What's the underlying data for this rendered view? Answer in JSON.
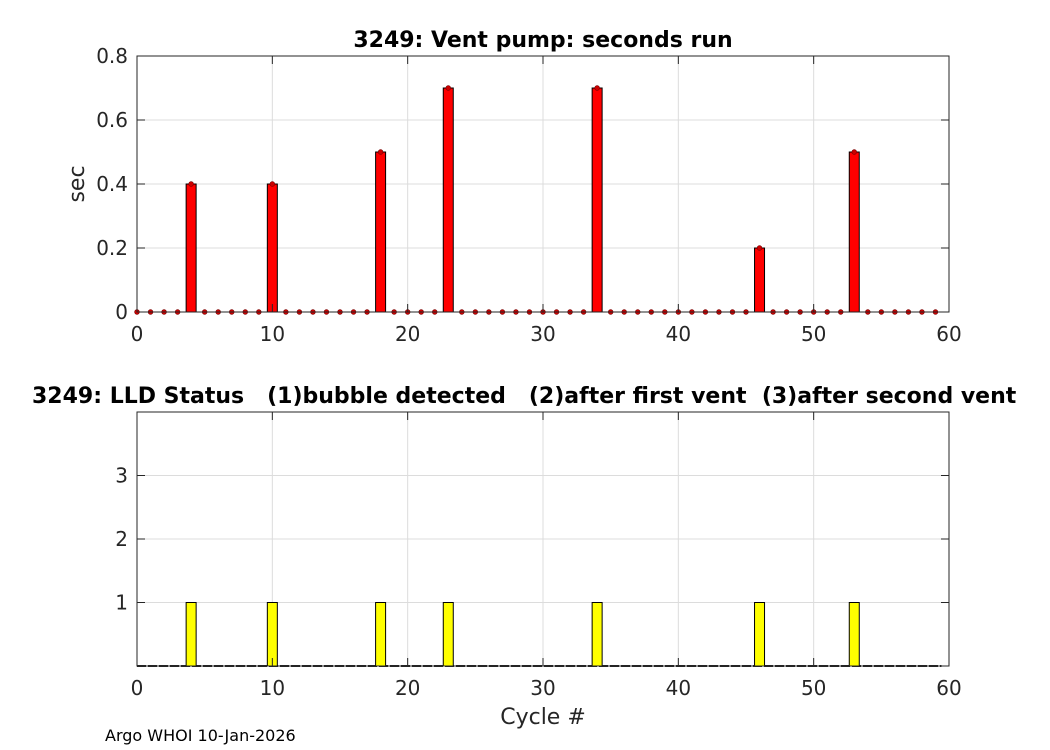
{
  "footer": "Argo WHOI 10-Jan-2026",
  "chart_data": [
    {
      "type": "bar",
      "title": "3249: Vent pump: seconds run",
      "xlabel": "",
      "ylabel": "sec",
      "xlim": [
        0,
        60
      ],
      "ylim": [
        0,
        0.8
      ],
      "xticks": [
        0,
        10,
        20,
        30,
        40,
        50,
        60
      ],
      "yticks": [
        0,
        0.2,
        0.4,
        0.6,
        0.8
      ],
      "grid": true,
      "bar_color": "#ff0000",
      "marker_color": "#cc0000",
      "x": [
        0,
        1,
        2,
        3,
        4,
        5,
        6,
        7,
        8,
        9,
        10,
        11,
        12,
        13,
        14,
        15,
        16,
        17,
        18,
        19,
        20,
        21,
        22,
        23,
        24,
        25,
        26,
        27,
        28,
        29,
        30,
        31,
        32,
        33,
        34,
        35,
        36,
        37,
        38,
        39,
        40,
        41,
        42,
        43,
        44,
        45,
        46,
        47,
        48,
        49,
        50,
        51,
        52,
        53,
        54,
        55,
        56,
        57,
        58,
        59
      ],
      "values": [
        0,
        0,
        0,
        0,
        0.4,
        0,
        0,
        0,
        0,
        0,
        0.4,
        0,
        0,
        0,
        0,
        0,
        0,
        0,
        0.5,
        0,
        0,
        0,
        0,
        0.7,
        0,
        0,
        0,
        0,
        0,
        0,
        0,
        0,
        0,
        0,
        0.7,
        0,
        0,
        0,
        0,
        0,
        0,
        0,
        0,
        0,
        0,
        0,
        0.2,
        0,
        0,
        0,
        0,
        0,
        0,
        0.5,
        0,
        0,
        0,
        0,
        0,
        0
      ]
    },
    {
      "type": "bar",
      "title": "3249: LLD Status   (1)bubble detected   (2)after first vent  (3)after second vent",
      "xlabel": "Cycle #",
      "ylabel": "",
      "xlim": [
        0,
        60
      ],
      "ylim": [
        0,
        4
      ],
      "xticks": [
        0,
        10,
        20,
        30,
        40,
        50,
        60
      ],
      "yticks": [
        1,
        2,
        3
      ],
      "grid": true,
      "bar_color": "#ffff00",
      "x": [
        0,
        1,
        2,
        3,
        4,
        5,
        6,
        7,
        8,
        9,
        10,
        11,
        12,
        13,
        14,
        15,
        16,
        17,
        18,
        19,
        20,
        21,
        22,
        23,
        24,
        25,
        26,
        27,
        28,
        29,
        30,
        31,
        32,
        33,
        34,
        35,
        36,
        37,
        38,
        39,
        40,
        41,
        42,
        43,
        44,
        45,
        46,
        47,
        48,
        49,
        50,
        51,
        52,
        53,
        54,
        55,
        56,
        57,
        58,
        59
      ],
      "values": [
        0,
        0,
        0,
        0,
        1,
        0,
        0,
        0,
        0,
        0,
        1,
        0,
        0,
        0,
        0,
        0,
        0,
        0,
        1,
        0,
        0,
        0,
        0,
        1,
        0,
        0,
        0,
        0,
        0,
        0,
        0,
        0,
        0,
        0,
        1,
        0,
        0,
        0,
        0,
        0,
        0,
        0,
        0,
        0,
        0,
        0,
        1,
        0,
        0,
        0,
        0,
        0,
        0,
        1,
        0,
        0,
        0,
        0,
        0,
        0
      ]
    }
  ]
}
